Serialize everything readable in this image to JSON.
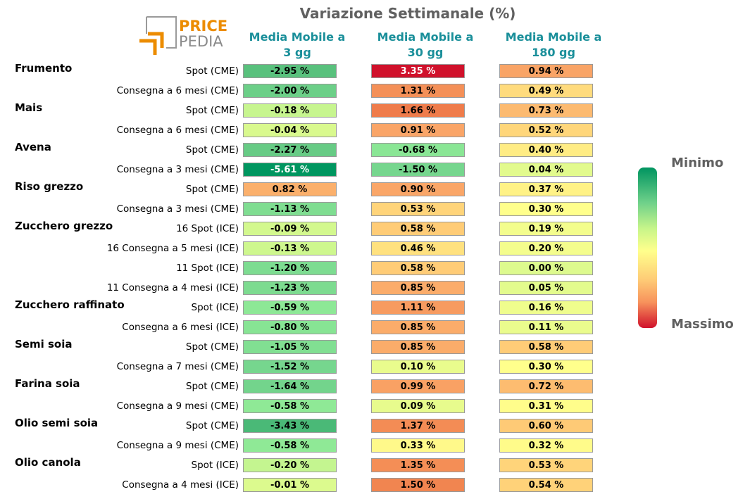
{
  "title": "Variazione Settimanale (%)",
  "logo": {
    "line1": "PRICE",
    "line2": "PEDIA",
    "accent": "#ec8c00",
    "grey": "#8a8a8a"
  },
  "chart_data": {
    "type": "table",
    "columns": [
      "Media Mobile a 3 gg",
      "Media Mobile a 30 gg",
      "Media Mobile a 180 gg"
    ],
    "column_lines": [
      [
        "Media Mobile a",
        "3 gg"
      ],
      [
        "Media Mobile a",
        "30 gg"
      ],
      [
        "Media Mobile a",
        "180 gg"
      ]
    ],
    "rows": [
      {
        "group": "Frumento",
        "label": "Spot (CME)",
        "values": [
          -2.95,
          3.35,
          0.94
        ]
      },
      {
        "group": "",
        "label": "Consegna a 6 mesi (CME)",
        "values": [
          -2.0,
          1.31,
          0.49
        ]
      },
      {
        "group": "Mais",
        "label": "Spot (CME)",
        "values": [
          -0.18,
          1.66,
          0.73
        ]
      },
      {
        "group": "",
        "label": "Consegna a 6 mesi (CME)",
        "values": [
          -0.04,
          0.91,
          0.52
        ]
      },
      {
        "group": "Avena",
        "label": "Spot (CME)",
        "values": [
          -2.27,
          -0.68,
          0.4
        ]
      },
      {
        "group": "",
        "label": "Consegna a 3 mesi (CME)",
        "values": [
          -5.61,
          -1.5,
          0.04
        ]
      },
      {
        "group": "Riso grezzo",
        "label": "Spot (CME)",
        "values": [
          0.82,
          0.9,
          0.37
        ]
      },
      {
        "group": "",
        "label": "Consegna a 3 mesi (CME)",
        "values": [
          -1.13,
          0.53,
          0.3
        ]
      },
      {
        "group": "Zucchero grezzo",
        "label": "16 Spot (ICE)",
        "values": [
          -0.09,
          0.58,
          0.19
        ]
      },
      {
        "group": "",
        "label": "16 Consegna a 5 mesi (ICE)",
        "values": [
          -0.13,
          0.46,
          0.2
        ]
      },
      {
        "group": "",
        "label": "11 Spot (ICE)",
        "values": [
          -1.2,
          0.58,
          0.0
        ]
      },
      {
        "group": "",
        "label": "11 Consegna a 4 mesi (ICE)",
        "values": [
          -1.23,
          0.85,
          0.05
        ]
      },
      {
        "group": "Zucchero raffinato",
        "label": "Spot (ICE)",
        "values": [
          -0.59,
          1.11,
          0.16
        ]
      },
      {
        "group": "",
        "label": "Consegna a 6 mesi (ICE)",
        "values": [
          -0.8,
          0.85,
          0.11
        ]
      },
      {
        "group": "Semi soia",
        "label": "Spot (CME)",
        "values": [
          -1.05,
          0.85,
          0.58
        ]
      },
      {
        "group": "",
        "label": "Consegna a 7 mesi (CME)",
        "values": [
          -1.52,
          0.1,
          0.3
        ]
      },
      {
        "group": "Farina soia",
        "label": "Spot (CME)",
        "values": [
          -1.64,
          0.99,
          0.72
        ]
      },
      {
        "group": "",
        "label": "Consegna a 9 mesi (CME)",
        "values": [
          -0.58,
          0.09,
          0.31
        ]
      },
      {
        "group": "Olio semi soia",
        "label": "Spot (CME)",
        "values": [
          -3.43,
          1.37,
          0.6
        ]
      },
      {
        "group": "",
        "label": "Consegna a 9 mesi (CME)",
        "values": [
          -0.58,
          0.33,
          0.32
        ]
      },
      {
        "group": "Olio canola",
        "label": "Spot (ICE)",
        "values": [
          -0.2,
          1.35,
          0.53
        ]
      },
      {
        "group": "",
        "label": "Consegna a 4 mesi (ICE)",
        "values": [
          -0.01,
          1.5,
          0.54
        ]
      }
    ],
    "colorbar": {
      "top_label": "Minimo",
      "bottom_label": "Massimo"
    }
  }
}
